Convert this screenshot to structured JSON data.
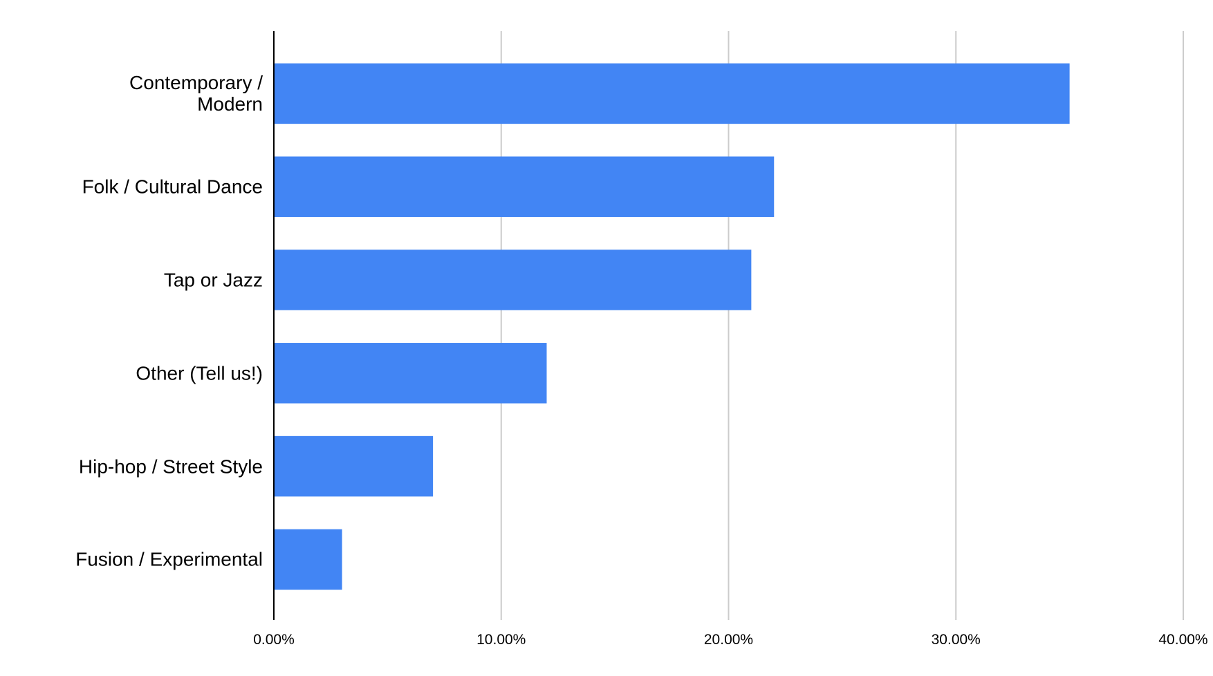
{
  "chart_data": {
    "type": "bar",
    "orientation": "horizontal",
    "categories": [
      "Contemporary /\nModern",
      "Folk / Cultural Dance",
      "Tap or Jazz",
      "Other (Tell us!)",
      "Hip-hop / Street Style",
      "Fusion / Experimental"
    ],
    "values": [
      35,
      22,
      21,
      12,
      7,
      3
    ],
    "color": "#4285f4",
    "xlim": [
      0,
      40
    ],
    "xticks": [
      {
        "value": 0,
        "label": "0.00%"
      },
      {
        "value": 10,
        "label": "10.00%"
      },
      {
        "value": 20,
        "label": "20.00%"
      },
      {
        "value": 30,
        "label": "30.00%"
      },
      {
        "value": 40,
        "label": "40.00%"
      }
    ],
    "grid": true
  }
}
